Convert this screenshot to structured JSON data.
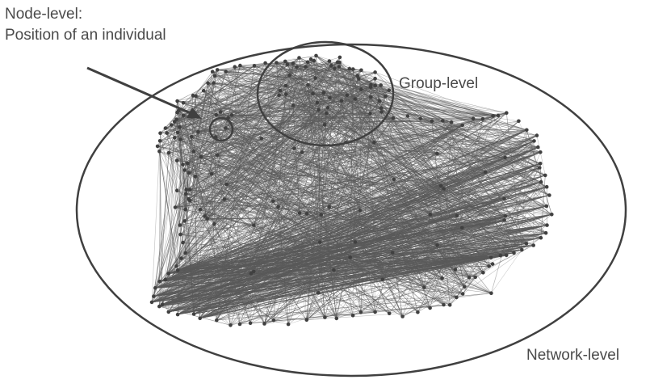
{
  "labels": {
    "node_level_title": "Node-level:",
    "node_level_caption": "Position of an individual",
    "group_level": "Group-level",
    "network_level": "Network-level"
  },
  "colors": {
    "ink": "#404040",
    "edge": "#5a5a5a",
    "text": "#4a4a4a",
    "background": "#ffffff"
  }
}
